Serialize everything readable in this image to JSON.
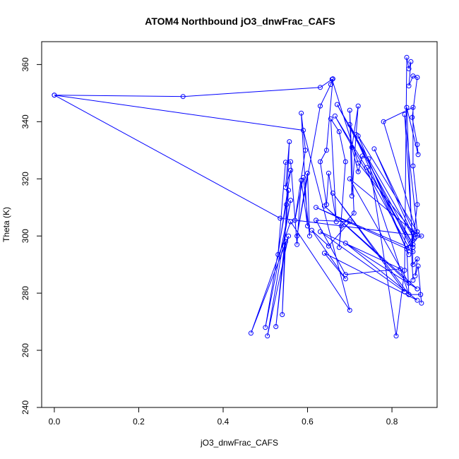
{
  "chart_data": {
    "type": "line",
    "title": "ATOM4 Northbound jO3_dnwFrac_CAFS",
    "xlabel": "jO3_dnwFrac_CAFS",
    "ylabel": "Theta (K)",
    "xlim": [
      -0.03,
      0.907
    ],
    "ylim": [
      240,
      368
    ],
    "xticks": [
      "0.0",
      "0.2",
      "0.4",
      "0.6",
      "0.8"
    ],
    "xtick_values": [
      0,
      0.2,
      0.4,
      0.6,
      0.8
    ],
    "yticks": [
      "240",
      "260",
      "280",
      "300",
      "320",
      "340",
      "360"
    ],
    "ytick_values": [
      240,
      260,
      280,
      300,
      320,
      340,
      360
    ],
    "grid": false,
    "legend": "none",
    "colors": {
      "series": "#0000ff",
      "axes": "#000000"
    },
    "series": [
      {
        "values": [
          [
            0.0,
            349.3
          ],
          [
            0.305,
            348.8
          ],
          [
            0.63,
            352.0
          ],
          [
            0.658,
            354.8
          ],
          [
            0.72,
            325.5
          ],
          [
            0.855,
            300.5
          ],
          [
            0.758,
            330.5
          ],
          [
            0.853,
            299.0
          ],
          [
            0.67,
            346.0
          ],
          [
            0.85,
            297.0
          ],
          [
            0.665,
            342.0
          ],
          [
            0.84,
            296.0
          ],
          [
            0.62,
            310.0
          ],
          [
            0.85,
            294.5
          ],
          [
            0.7,
            339.0
          ],
          [
            0.84,
            293.5
          ],
          [
            0.72,
            335.0
          ],
          [
            0.86,
            301.5
          ],
          [
            0.83,
            342.5
          ],
          [
            0.85,
            296.0
          ],
          [
            0.74,
            324.0
          ],
          [
            0.84,
            279.5
          ],
          [
            0.66,
            315.0
          ],
          [
            0.83,
            280.5
          ],
          [
            0.63,
            301.5
          ],
          [
            0.82,
            288.5
          ],
          [
            0.69,
            286.5
          ],
          [
            0.62,
            305.5
          ],
          [
            0.7,
            305.0
          ],
          [
            0.65,
            296.5
          ],
          [
            0.61,
            302.0
          ],
          [
            0.69,
            285.0
          ],
          [
            0.64,
            294.0
          ],
          [
            0.86,
            277.5
          ],
          [
            0.69,
            297.5
          ],
          [
            0.86,
            281.5
          ],
          [
            0.64,
            310.5
          ],
          [
            0.84,
            283.5
          ],
          [
            0.7,
            320.0
          ],
          [
            0.86,
            300.5
          ],
          [
            0.78,
            340.0
          ],
          [
            0.85,
            345.0
          ],
          [
            0.85,
            324.5
          ],
          [
            0.86,
            311.0
          ],
          [
            0.85,
            298.5
          ],
          [
            0.87,
            300.0
          ],
          [
            0.535,
            306.2
          ],
          [
            0.0,
            349.3
          ],
          [
            0.59,
            337.0
          ],
          [
            0.7,
            274.0
          ],
          [
            0.56,
            305.0
          ],
          [
            0.466,
            266.0
          ],
          [
            0.555,
            300.0
          ],
          [
            0.505,
            265.0
          ],
          [
            0.56,
            312.5
          ],
          [
            0.5,
            268.0
          ],
          [
            0.555,
            316.0
          ],
          [
            0.545,
            296.5
          ],
          [
            0.525,
            268.3
          ],
          [
            0.548,
            298.0
          ],
          [
            0.54,
            272.5
          ],
          [
            0.55,
            311.0
          ],
          [
            0.557,
            333.0
          ],
          [
            0.548,
            317.0
          ],
          [
            0.56,
            323.0
          ],
          [
            0.53,
            293.5
          ],
          [
            0.548,
            325.8
          ],
          [
            0.56,
            326.0
          ],
          [
            0.575,
            297.0
          ],
          [
            0.585,
            319.5
          ],
          [
            0.6,
            303.5
          ],
          [
            0.585,
            343.0
          ],
          [
            0.595,
            330.0
          ],
          [
            0.57,
            305.5
          ],
          [
            0.59,
            320.5
          ],
          [
            0.605,
            300.0
          ],
          [
            0.6,
            322.0
          ],
          [
            0.575,
            300.0
          ],
          [
            0.63,
            345.5
          ],
          [
            0.655,
            353.0
          ],
          [
            0.66,
            355.0
          ],
          [
            0.645,
            330.0
          ],
          [
            0.63,
            326.0
          ],
          [
            0.645,
            311.0
          ],
          [
            0.65,
            322.0
          ],
          [
            0.668,
            305.0
          ],
          [
            0.655,
            341.0
          ],
          [
            0.675,
            336.5
          ],
          [
            0.69,
            326.0
          ],
          [
            0.675,
            296.0
          ],
          [
            0.68,
            303.5
          ],
          [
            0.71,
            308.0
          ],
          [
            0.7,
            344.0
          ],
          [
            0.705,
            314.0
          ],
          [
            0.715,
            335.5
          ],
          [
            0.72,
            345.5
          ],
          [
            0.705,
            331.0
          ],
          [
            0.72,
            322.5
          ],
          [
            0.73,
            328.0
          ],
          [
            0.745,
            327.0
          ],
          [
            0.81,
            265.0
          ],
          [
            0.83,
            288.0
          ],
          [
            0.835,
            362.5
          ],
          [
            0.84,
            358.5
          ],
          [
            0.845,
            361.0
          ],
          [
            0.84,
            352.5
          ],
          [
            0.85,
            356.0
          ],
          [
            0.86,
            355.5
          ],
          [
            0.848,
            341.5
          ],
          [
            0.86,
            332.0
          ],
          [
            0.862,
            328.5
          ],
          [
            0.835,
            345.0
          ],
          [
            0.85,
            290.0
          ],
          [
            0.86,
            292.0
          ],
          [
            0.855,
            286.0
          ],
          [
            0.862,
            289.5
          ],
          [
            0.87,
            276.5
          ],
          [
            0.868,
            279.5
          ],
          [
            0.84,
            279.5
          ],
          [
            0.835,
            295.5
          ],
          [
            0.845,
            297.5
          ],
          [
            0.85,
            284.5
          ]
        ]
      }
    ]
  }
}
